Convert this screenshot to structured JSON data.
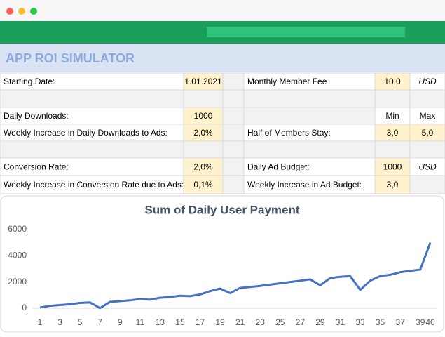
{
  "header": {
    "title": "APP ROI SIMULATOR"
  },
  "table": {
    "rows": [
      [
        "Starting Date:",
        "1.01.2021",
        null,
        "Monthly Member Fee",
        "10,0",
        "USD"
      ],
      [
        null,
        null,
        null,
        null,
        null,
        null
      ],
      [
        "Daily Downloads:",
        "1000",
        null,
        null,
        "Min",
        "Max"
      ],
      [
        "Weekly Increase in Daily Downloads to Ads:",
        "2,0%",
        null,
        "Half of Members Stay:",
        "3,0",
        "5,0"
      ],
      [
        null,
        null,
        null,
        null,
        null,
        null
      ],
      [
        "Conversion Rate:",
        "2,0%",
        null,
        "Daily Ad Budget:",
        "1000",
        "USD"
      ],
      [
        "Weekly Increase in Conversion Rate due to Ads:",
        "0,1%",
        null,
        "Weekly Increase in Ad   Budget:",
        "3,0",
        null
      ]
    ]
  },
  "chart_data": {
    "type": "line",
    "title": "Sum of Daily User Payment",
    "color": "#4472c4",
    "grid": false,
    "categories": [
      1,
      null,
      3,
      null,
      5,
      null,
      7,
      null,
      9,
      null,
      11,
      null,
      13,
      null,
      15,
      null,
      17,
      null,
      19,
      null,
      21,
      null,
      23,
      null,
      25,
      null,
      27,
      null,
      29,
      null,
      31,
      null,
      33,
      null,
      35,
      null,
      37,
      null,
      39,
      40
    ],
    "values": [
      50,
      180,
      240,
      300,
      400,
      440,
      10,
      480,
      540,
      600,
      700,
      650,
      800,
      860,
      950,
      920,
      1050,
      1300,
      1500,
      1150,
      1550,
      1620,
      1700,
      1800,
      1900,
      2000,
      2100,
      2200,
      1750,
      2300,
      2400,
      2450,
      1400,
      2100,
      2450,
      2550,
      2750,
      2850,
      2950,
      5000
    ],
    "ylim": [
      0,
      6000
    ],
    "yticks": [
      0,
      2000,
      4000,
      6000
    ]
  }
}
